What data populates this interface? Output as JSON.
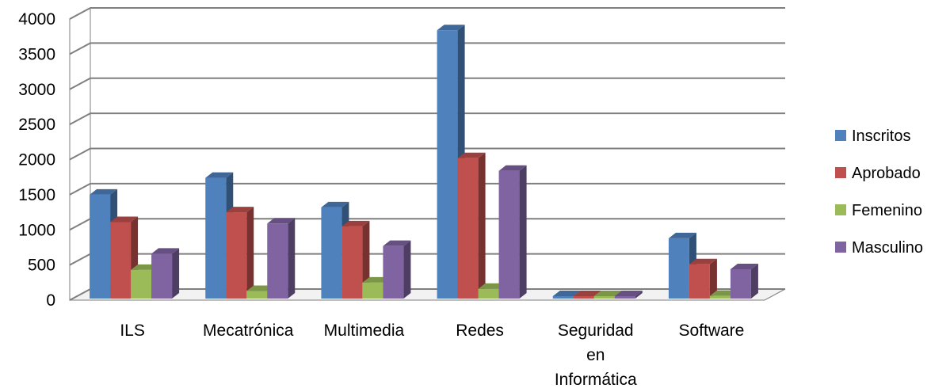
{
  "chart_data": {
    "type": "bar",
    "categories": [
      "ILS",
      "Mecatrónica",
      "Multimedia",
      "Redes",
      "Seguridad en Informática",
      "Software"
    ],
    "category_lines": [
      [
        "ILS"
      ],
      [
        "Mecatrónica"
      ],
      [
        "Multimedia"
      ],
      [
        "Redes"
      ],
      [
        "Seguridad",
        "en",
        "Informática"
      ],
      [
        "Software"
      ]
    ],
    "series": [
      {
        "name": "Inscritos",
        "color": "#4f81bd",
        "values": [
          1500,
          1740,
          1320,
          3840,
          40,
          880
        ]
      },
      {
        "name": "Aprobado",
        "color": "#c0504d",
        "values": [
          1110,
          1250,
          1050,
          2020,
          30,
          510
        ]
      },
      {
        "name": "Femenino",
        "color": "#9bbb59",
        "values": [
          430,
          130,
          250,
          160,
          10,
          60
        ]
      },
      {
        "name": "Masculino",
        "color": "#8064a2",
        "values": [
          660,
          1090,
          770,
          1840,
          40,
          440
        ]
      }
    ],
    "ylim": [
      0,
      4000
    ],
    "yticks": [
      "0",
      "500",
      "1000",
      "1500",
      "2000",
      "2500",
      "3000",
      "3500",
      "4000"
    ],
    "grid": true,
    "legend_position": "right",
    "style": "3d-clustered-column",
    "title": "",
    "xlabel": "",
    "ylabel": ""
  }
}
